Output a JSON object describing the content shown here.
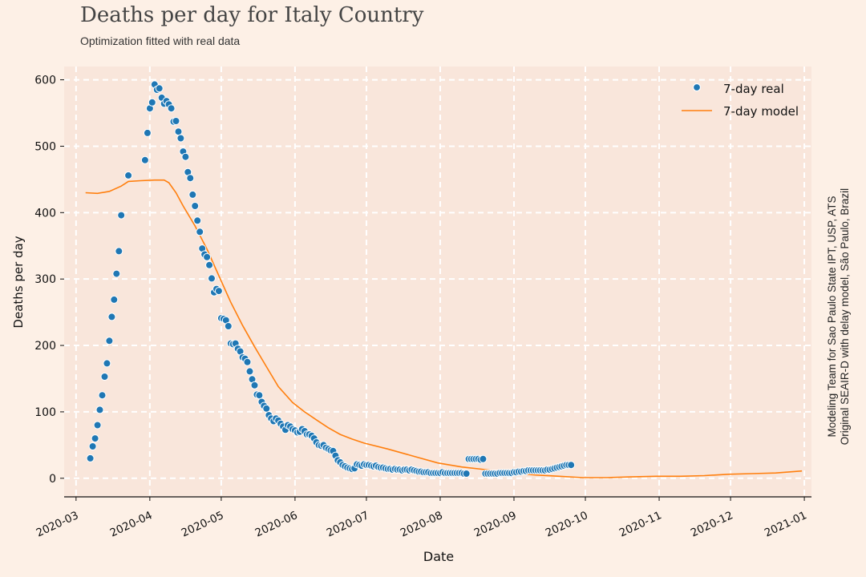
{
  "header": {
    "title": "Deaths per day for Italy Country",
    "subtitle": "Optimization fitted with real data"
  },
  "credit": {
    "line1": "Modeling Team for Sao Paulo State IPT, USP, ATS",
    "line2": "Original SEAIR-D with delay model, São Paulo, Brazil"
  },
  "colors": {
    "background": "#fdf0e6",
    "plot_area": "#f9e6db",
    "real": "#1f77b4",
    "model": "#ff7f0e",
    "grid": "#ffffff"
  },
  "chart_data": {
    "type": "line",
    "title": "Deaths per day for Italy Country",
    "subtitle": "Optimization fitted with real data",
    "xlabel": "Date",
    "ylabel": "Deaths per day",
    "x_ticks": [
      "2020-03",
      "2020-04",
      "2020-05",
      "2020-06",
      "2020-07",
      "2020-08",
      "2020-09",
      "2020-10",
      "2020-11",
      "2020-12",
      "2021-01"
    ],
    "y_ticks": [
      0,
      100,
      200,
      300,
      400,
      500,
      600
    ],
    "xlim": [
      "2020-02-25",
      "2021-01-04"
    ],
    "ylim": [
      -28,
      620
    ],
    "grid": true,
    "legend_position": "top-right",
    "series": [
      {
        "name": "7-day real",
        "kind": "scatter",
        "points": [
          [
            "2020-03-07",
            30
          ],
          [
            "2020-03-08",
            48
          ],
          [
            "2020-03-09",
            60
          ],
          [
            "2020-03-10",
            80
          ],
          [
            "2020-03-11",
            103
          ],
          [
            "2020-03-12",
            125
          ],
          [
            "2020-03-13",
            153
          ],
          [
            "2020-03-14",
            173
          ],
          [
            "2020-03-15",
            207
          ],
          [
            "2020-03-16",
            243
          ],
          [
            "2020-03-17",
            269
          ],
          [
            "2020-03-18",
            308
          ],
          [
            "2020-03-19",
            342
          ],
          [
            "2020-03-20",
            396
          ],
          [
            "2020-03-23",
            456
          ],
          [
            "2020-03-30",
            479
          ],
          [
            "2020-03-31",
            520
          ],
          [
            "2020-04-01",
            557
          ],
          [
            "2020-04-02",
            566
          ],
          [
            "2020-04-03",
            593
          ],
          [
            "2020-04-04",
            585
          ],
          [
            "2020-04-05",
            587
          ],
          [
            "2020-04-06",
            573
          ],
          [
            "2020-04-07",
            564
          ],
          [
            "2020-04-08",
            568
          ],
          [
            "2020-04-09",
            563
          ],
          [
            "2020-04-10",
            557
          ],
          [
            "2020-04-11",
            537
          ],
          [
            "2020-04-12",
            538
          ],
          [
            "2020-04-13",
            522
          ],
          [
            "2020-04-14",
            512
          ],
          [
            "2020-04-15",
            492
          ],
          [
            "2020-04-16",
            484
          ],
          [
            "2020-04-17",
            461
          ],
          [
            "2020-04-18",
            452
          ],
          [
            "2020-04-19",
            427
          ],
          [
            "2020-04-20",
            410
          ],
          [
            "2020-04-21",
            388
          ],
          [
            "2020-04-22",
            371
          ],
          [
            "2020-04-23",
            346
          ],
          [
            "2020-04-24",
            337
          ],
          [
            "2020-04-25",
            333
          ],
          [
            "2020-04-26",
            321
          ],
          [
            "2020-04-27",
            301
          ],
          [
            "2020-04-28",
            280
          ],
          [
            "2020-04-29",
            285
          ],
          [
            "2020-04-30",
            282
          ],
          [
            "2020-05-01",
            241
          ],
          [
            "2020-05-02",
            240
          ],
          [
            "2020-05-03",
            238
          ],
          [
            "2020-05-04",
            229
          ],
          [
            "2020-05-05",
            203
          ],
          [
            "2020-05-06",
            202
          ],
          [
            "2020-05-07",
            203
          ],
          [
            "2020-05-08",
            195
          ],
          [
            "2020-05-09",
            191
          ],
          [
            "2020-05-10",
            182
          ],
          [
            "2020-05-11",
            180
          ],
          [
            "2020-05-12",
            175
          ],
          [
            "2020-05-13",
            161
          ],
          [
            "2020-05-14",
            149
          ],
          [
            "2020-05-15",
            140
          ],
          [
            "2020-05-16",
            126
          ],
          [
            "2020-05-17",
            125
          ],
          [
            "2020-05-18",
            115
          ],
          [
            "2020-05-19",
            109
          ],
          [
            "2020-05-20",
            105
          ],
          [
            "2020-05-21",
            95
          ],
          [
            "2020-05-22",
            90
          ],
          [
            "2020-05-23",
            86
          ],
          [
            "2020-05-24",
            90
          ],
          [
            "2020-05-25",
            87
          ],
          [
            "2020-05-26",
            82
          ],
          [
            "2020-05-27",
            78
          ],
          [
            "2020-05-28",
            73
          ],
          [
            "2020-05-29",
            80
          ],
          [
            "2020-05-30",
            78
          ],
          [
            "2020-05-31",
            74
          ],
          [
            "2020-06-01",
            72
          ],
          [
            "2020-06-02",
            69
          ],
          [
            "2020-06-03",
            70
          ],
          [
            "2020-06-04",
            74
          ],
          [
            "2020-06-05",
            71
          ],
          [
            "2020-06-06",
            66
          ],
          [
            "2020-06-07",
            66
          ],
          [
            "2020-06-08",
            64
          ],
          [
            "2020-06-09",
            60
          ],
          [
            "2020-06-10",
            54
          ],
          [
            "2020-06-11",
            50
          ],
          [
            "2020-06-12",
            49
          ],
          [
            "2020-06-13",
            50
          ],
          [
            "2020-06-14",
            46
          ],
          [
            "2020-06-15",
            44
          ],
          [
            "2020-06-16",
            42
          ],
          [
            "2020-06-17",
            41
          ],
          [
            "2020-06-18",
            34
          ],
          [
            "2020-06-19",
            27
          ],
          [
            "2020-06-20",
            24
          ],
          [
            "2020-06-21",
            20
          ],
          [
            "2020-06-22",
            18
          ],
          [
            "2020-06-23",
            16
          ],
          [
            "2020-06-24",
            15
          ],
          [
            "2020-06-25",
            14
          ],
          [
            "2020-06-26",
            15
          ],
          [
            "2020-06-27",
            21
          ],
          [
            "2020-06-28",
            20
          ],
          [
            "2020-06-29",
            19
          ],
          [
            "2020-06-30",
            21
          ],
          [
            "2020-07-01",
            20
          ],
          [
            "2020-07-02",
            20
          ],
          [
            "2020-07-03",
            19
          ],
          [
            "2020-07-04",
            18
          ],
          [
            "2020-07-05",
            19
          ],
          [
            "2020-07-06",
            17
          ],
          [
            "2020-07-07",
            16
          ],
          [
            "2020-07-08",
            16
          ],
          [
            "2020-07-09",
            15
          ],
          [
            "2020-07-10",
            14
          ],
          [
            "2020-07-11",
            14
          ],
          [
            "2020-07-12",
            13
          ],
          [
            "2020-07-13",
            14
          ],
          [
            "2020-07-14",
            13
          ],
          [
            "2020-07-15",
            13
          ],
          [
            "2020-07-16",
            12
          ],
          [
            "2020-07-17",
            13
          ],
          [
            "2020-07-18",
            13
          ],
          [
            "2020-07-19",
            12
          ],
          [
            "2020-07-20",
            13
          ],
          [
            "2020-07-21",
            12
          ],
          [
            "2020-07-22",
            11
          ],
          [
            "2020-07-23",
            10
          ],
          [
            "2020-07-24",
            10
          ],
          [
            "2020-07-25",
            9
          ],
          [
            "2020-07-26",
            9
          ],
          [
            "2020-07-27",
            9
          ],
          [
            "2020-07-28",
            8
          ],
          [
            "2020-07-29",
            8
          ],
          [
            "2020-07-30",
            8
          ],
          [
            "2020-07-31",
            8
          ],
          [
            "2020-08-01",
            8
          ],
          [
            "2020-08-02",
            9
          ],
          [
            "2020-08-03",
            8
          ],
          [
            "2020-08-04",
            8
          ],
          [
            "2020-08-05",
            8
          ],
          [
            "2020-08-06",
            8
          ],
          [
            "2020-08-07",
            8
          ],
          [
            "2020-08-08",
            8
          ],
          [
            "2020-08-09",
            8
          ],
          [
            "2020-08-10",
            8
          ],
          [
            "2020-08-11",
            7
          ],
          [
            "2020-08-12",
            7
          ],
          [
            "2020-08-13",
            29
          ],
          [
            "2020-08-14",
            29
          ],
          [
            "2020-08-15",
            29
          ],
          [
            "2020-08-16",
            29
          ],
          [
            "2020-08-17",
            29
          ],
          [
            "2020-08-18",
            28
          ],
          [
            "2020-08-19",
            29
          ],
          [
            "2020-08-20",
            7
          ],
          [
            "2020-08-21",
            7
          ],
          [
            "2020-08-22",
            7
          ],
          [
            "2020-08-23",
            7
          ],
          [
            "2020-08-24",
            7
          ],
          [
            "2020-08-25",
            7
          ],
          [
            "2020-08-26",
            8
          ],
          [
            "2020-08-27",
            8
          ],
          [
            "2020-08-28",
            8
          ],
          [
            "2020-08-29",
            8
          ],
          [
            "2020-08-30",
            8
          ],
          [
            "2020-08-31",
            8
          ],
          [
            "2020-09-01",
            9
          ],
          [
            "2020-09-02",
            9
          ],
          [
            "2020-09-03",
            10
          ],
          [
            "2020-09-04",
            10
          ],
          [
            "2020-09-05",
            11
          ],
          [
            "2020-09-06",
            11
          ],
          [
            "2020-09-07",
            12
          ],
          [
            "2020-09-08",
            12
          ],
          [
            "2020-09-09",
            12
          ],
          [
            "2020-09-10",
            12
          ],
          [
            "2020-09-11",
            12
          ],
          [
            "2020-09-12",
            12
          ],
          [
            "2020-09-13",
            12
          ],
          [
            "2020-09-14",
            12
          ],
          [
            "2020-09-15",
            13
          ],
          [
            "2020-09-16",
            13
          ],
          [
            "2020-09-17",
            14
          ],
          [
            "2020-09-18",
            15
          ],
          [
            "2020-09-19",
            16
          ],
          [
            "2020-09-20",
            17
          ],
          [
            "2020-09-21",
            18
          ],
          [
            "2020-09-22",
            19
          ],
          [
            "2020-09-23",
            20
          ],
          [
            "2020-09-24",
            20
          ],
          [
            "2020-09-25",
            20
          ]
        ]
      },
      {
        "name": "7-day model",
        "kind": "line",
        "points": [
          [
            "2020-03-05",
            430
          ],
          [
            "2020-03-10",
            429
          ],
          [
            "2020-03-15",
            432
          ],
          [
            "2020-03-20",
            440
          ],
          [
            "2020-03-23",
            447
          ],
          [
            "2020-03-28",
            448
          ],
          [
            "2020-04-03",
            449
          ],
          [
            "2020-04-07",
            449
          ],
          [
            "2020-04-09",
            445
          ],
          [
            "2020-04-12",
            430
          ],
          [
            "2020-04-15",
            410
          ],
          [
            "2020-04-20",
            380
          ],
          [
            "2020-04-25",
            345
          ],
          [
            "2020-04-30",
            305
          ],
          [
            "2020-05-05",
            265
          ],
          [
            "2020-05-10",
            230
          ],
          [
            "2020-05-15",
            198
          ],
          [
            "2020-05-20",
            168
          ],
          [
            "2020-05-25",
            138
          ],
          [
            "2020-05-31",
            114
          ],
          [
            "2020-06-05",
            100
          ],
          [
            "2020-06-10",
            88
          ],
          [
            "2020-06-15",
            76
          ],
          [
            "2020-06-20",
            66
          ],
          [
            "2020-06-25",
            59
          ],
          [
            "2020-06-30",
            53
          ],
          [
            "2020-07-10",
            44
          ],
          [
            "2020-07-20",
            34
          ],
          [
            "2020-07-31",
            23
          ],
          [
            "2020-08-10",
            17
          ],
          [
            "2020-08-20",
            13
          ],
          [
            "2020-08-31",
            8
          ],
          [
            "2020-09-10",
            5
          ],
          [
            "2020-09-20",
            3
          ],
          [
            "2020-09-30",
            1
          ],
          [
            "2020-10-10",
            1
          ],
          [
            "2020-10-20",
            2
          ],
          [
            "2020-10-31",
            3
          ],
          [
            "2020-11-10",
            3
          ],
          [
            "2020-11-20",
            4
          ],
          [
            "2020-11-30",
            6
          ],
          [
            "2020-12-10",
            7
          ],
          [
            "2020-12-20",
            8
          ],
          [
            "2020-12-31",
            11
          ]
        ]
      }
    ]
  }
}
